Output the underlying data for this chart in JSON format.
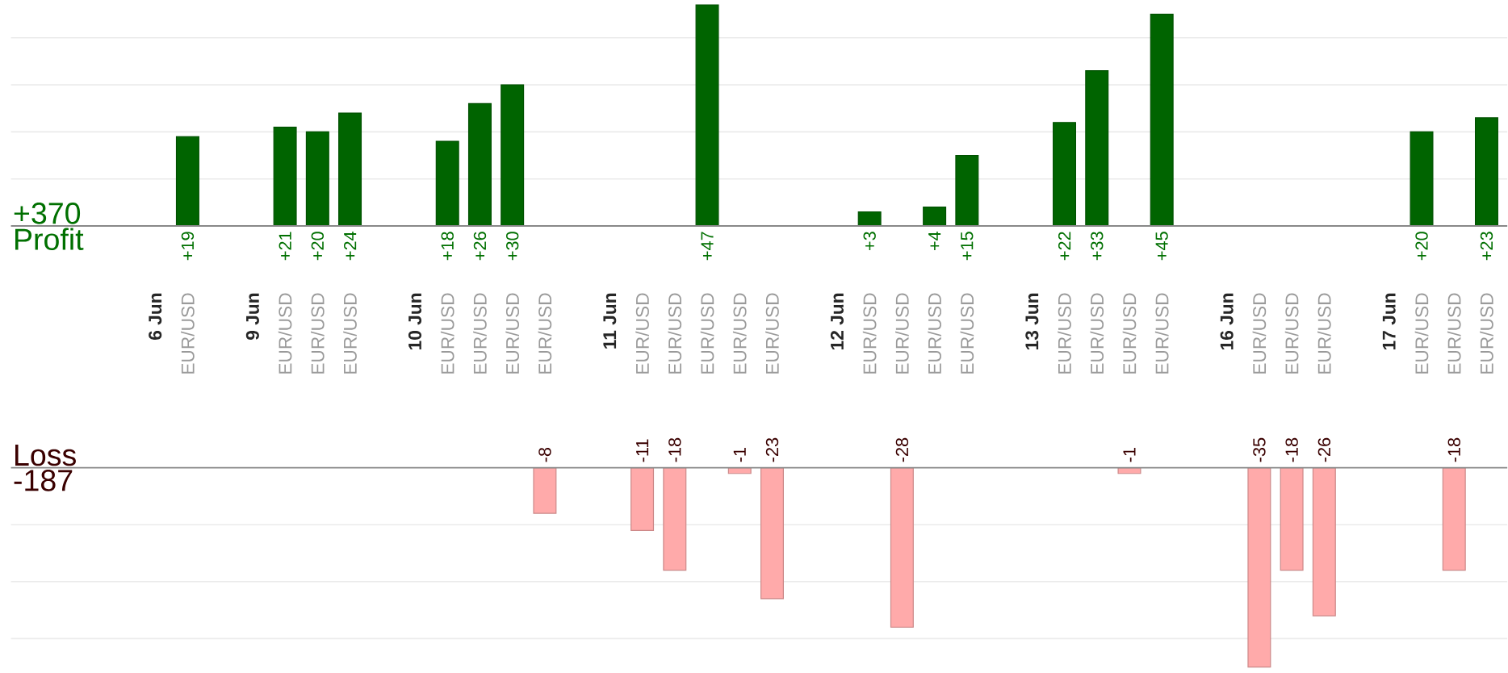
{
  "chart_data": [
    {
      "type": "bar",
      "ylabel": "Profit",
      "annotations": [
        "+370"
      ],
      "color": "#006400",
      "tick_labels": "x",
      "grid": "y",
      "ylim": [
        0,
        48
      ],
      "yticks": [
        {
          "value": 10,
          "label": null
        },
        {
          "value": 20,
          "label": null
        },
        {
          "value": 30,
          "label": null
        },
        {
          "value": 40,
          "label": null
        }
      ],
      "categories": [
        "6 Jun",
        "EUR/USD",
        null,
        "9 Jun",
        "EUR/USD",
        "EUR/USD",
        "EUR/USD",
        null,
        "10 Jun",
        "EUR/USD",
        "EUR/USD",
        "EUR/USD",
        "EUR/USD",
        null,
        "11 Jun",
        "EUR/USD",
        "EUR/USD",
        "EUR/USD",
        "EUR/USD",
        "EUR/USD",
        null,
        "12 Jun",
        "EUR/USD",
        "EUR/USD",
        "EUR/USD",
        "EUR/USD",
        null,
        "13 Jun",
        "EUR/USD",
        "EUR/USD",
        "EUR/USD",
        "EUR/USD",
        null,
        "16 Jun",
        "EUR/USD",
        "EUR/USD",
        "EUR/USD",
        null,
        "17 Jun",
        "EUR/USD",
        "EUR/USD",
        "EUR/USD"
      ],
      "values": [
        null,
        19,
        null,
        null,
        21,
        20,
        24,
        null,
        null,
        18,
        26,
        30,
        null,
        null,
        null,
        null,
        null,
        47,
        null,
        null,
        null,
        null,
        3,
        null,
        4,
        15,
        null,
        null,
        22,
        33,
        null,
        45,
        null,
        null,
        null,
        null,
        null,
        null,
        null,
        20,
        null,
        23
      ],
      "value_labels": [
        null,
        "+19",
        null,
        null,
        "+21",
        "+20",
        "+24",
        null,
        null,
        "+18",
        "+26",
        "+30",
        null,
        null,
        null,
        null,
        null,
        "+47",
        null,
        null,
        null,
        null,
        "+3",
        null,
        "+4",
        "+15",
        null,
        null,
        "+22",
        "+33",
        null,
        "+45",
        null,
        null,
        null,
        null,
        null,
        null,
        null,
        "+20",
        null,
        "+23"
      ]
    },
    {
      "type": "bar",
      "ylabel": "Loss",
      "annotations": [
        "-187"
      ],
      "color": "#ffaaaa",
      "tick_labels": false,
      "grid": "y",
      "ylim": [
        -36,
        0
      ],
      "yticks": [
        {
          "value": -10,
          "label": null
        },
        {
          "value": -20,
          "label": null
        },
        {
          "value": -30,
          "label": null
        }
      ],
      "values": [
        null,
        null,
        null,
        null,
        null,
        null,
        null,
        null,
        null,
        null,
        null,
        null,
        -8,
        null,
        null,
        -11,
        -18,
        null,
        -1,
        -23,
        null,
        null,
        null,
        -28,
        null,
        null,
        null,
        null,
        null,
        null,
        -1,
        null,
        null,
        null,
        -35,
        -18,
        -26,
        null,
        null,
        null,
        -18,
        null
      ],
      "value_labels": [
        null,
        null,
        null,
        null,
        null,
        null,
        null,
        null,
        null,
        null,
        null,
        null,
        "-8",
        null,
        null,
        "-11",
        "-18",
        null,
        "-1",
        "-23",
        null,
        null,
        null,
        "-28",
        null,
        null,
        null,
        null,
        null,
        null,
        "-1",
        null,
        null,
        null,
        "-35",
        "-18",
        "-26",
        null,
        null,
        null,
        "-18",
        null
      ]
    }
  ]
}
